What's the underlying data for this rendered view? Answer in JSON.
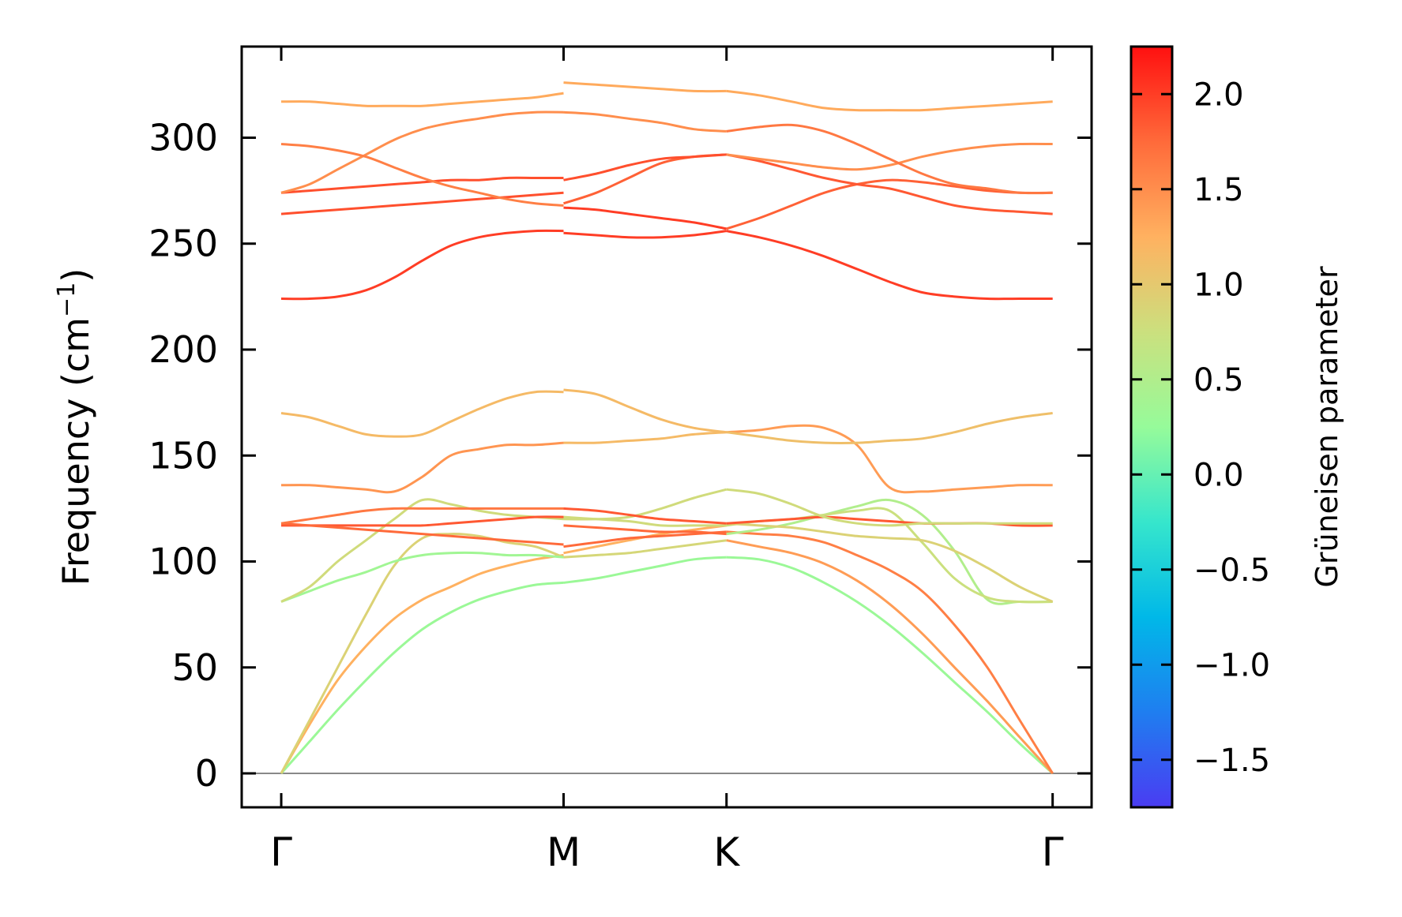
{
  "chart_data": {
    "type": "line",
    "title": "",
    "xlabel": "",
    "ylabel": "Frequency (cm",
    "ylabel_sup": "−1",
    "ylabel_close": ")",
    "ylim": [
      -16,
      343
    ],
    "yticks": [
      0,
      50,
      100,
      150,
      200,
      250,
      300
    ],
    "xticks": [
      {
        "label": "Γ",
        "pos": 0.0
      },
      {
        "label": "M",
        "pos": 1.0
      },
      {
        "label": "K",
        "pos": 1.577
      },
      {
        "label": "Γ",
        "pos": 2.732
      }
    ],
    "xlim": [
      -0.14,
      2.87
    ],
    "zero_line": true,
    "colorbar": {
      "label": "Grüneisen parameter",
      "range": [
        -1.75,
        2.25
      ],
      "ticks": [
        2.0,
        1.5,
        1.0,
        0.5,
        0.0,
        -0.5,
        -1.0,
        -1.5
      ],
      "tick_labels": [
        "2.0",
        "1.5",
        "1.0",
        "0.5",
        "0.0",
        "−0.5",
        "−1.0",
        "−1.5"
      ],
      "colormap": "rainbow"
    },
    "segments": [
      {
        "name": "Γ-M",
        "x": [
          0.0,
          0.1,
          0.2,
          0.3,
          0.4,
          0.5,
          0.6,
          0.7,
          0.8,
          0.9,
          1.0
        ],
        "bands": [
          {
            "y": [
              0,
              23,
              44,
              60,
              73,
              82,
              88,
              94,
              98,
              101,
              103
            ],
            "g": 1.25
          },
          {
            "y": [
              0,
              15,
              30,
              44,
              57,
              68,
              76,
              82,
              86,
              89,
              90
            ],
            "g": 0.3
          },
          {
            "y": [
              0,
              25,
              50,
              75,
              98,
              111,
              113,
              112,
              109,
              107,
              102
            ],
            "g": 0.9
          },
          {
            "y": [
              81,
              86,
              91,
              95,
              100,
              103,
              104,
              104,
              103,
              103,
              102
            ],
            "g": 0.35
          },
          {
            "y": [
              81,
              88,
              100,
              110,
              120,
              129,
              127,
              124,
              122,
              121,
              120
            ],
            "g": 0.8
          },
          {
            "y": [
              117,
              117,
              117,
              117,
              117,
              117,
              118,
              119,
              120,
              121,
              121
            ],
            "g": 1.85
          },
          {
            "y": [
              118,
              117,
              116,
              115,
              114,
              113,
              112,
              111,
              110,
              109,
              108
            ],
            "g": 1.75
          },
          {
            "y": [
              118,
              120,
              122,
              124,
              125,
              125,
              125,
              125,
              125,
              125,
              125
            ],
            "g": 1.65
          },
          {
            "y": [
              136,
              136,
              135,
              134,
              133,
              140,
              150,
              153,
              155,
              155,
              156
            ],
            "g": 1.45
          },
          {
            "y": [
              170,
              168,
              164,
              160,
              159,
              160,
              166,
              172,
              177,
              180,
              180
            ],
            "g": 1.15
          },
          {
            "y": [
              224,
              224,
              225,
              228,
              234,
              242,
              249,
              253,
              255,
              256,
              256
            ],
            "g": 2.0
          },
          {
            "y": [
              264,
              265,
              266,
              267,
              268,
              269,
              270,
              271,
              272,
              273,
              274
            ],
            "g": 1.9
          },
          {
            "y": [
              274,
              275,
              276,
              277,
              278,
              279,
              280,
              280,
              281,
              281,
              281
            ],
            "g": 1.9
          },
          {
            "y": [
              274,
              278,
              285,
              292,
              299,
              304,
              307,
              309,
              311,
              312,
              312
            ],
            "g": 1.5
          },
          {
            "y": [
              297,
              296,
              294,
              291,
              286,
              281,
              277,
              274,
              271,
              269,
              268
            ],
            "g": 1.6
          },
          {
            "y": [
              317,
              317,
              316,
              315,
              315,
              315,
              316,
              317,
              318,
              319,
              321
            ],
            "g": 1.3
          }
        ]
      },
      {
        "name": "M-K",
        "x": [
          1.0,
          1.1154,
          1.2308,
          1.3462,
          1.4616,
          1.577
        ],
        "bands": [
          {
            "y": [
              90,
              92,
              95,
              98,
              101,
              102
            ],
            "g": 0.3
          },
          {
            "y": [
              102,
              103,
              104,
              106,
              108,
              110
            ],
            "g": 0.85
          },
          {
            "y": [
              104,
              107,
              110,
              113,
              115,
              117
            ],
            "g": 1.25
          },
          {
            "y": [
              107,
              109,
              111,
              112,
              113,
              114
            ],
            "g": 1.75
          },
          {
            "y": [
              117,
              116,
              115,
              114,
              114,
              113
            ],
            "g": 1.75
          },
          {
            "y": [
              120,
              120,
              121,
              125,
              130,
              134
            ],
            "g": 0.8
          },
          {
            "y": [
              121,
              120,
              119,
              117,
              117,
              117
            ],
            "g": 0.8
          },
          {
            "y": [
              125,
              124,
              122,
              120,
              119,
              118
            ],
            "g": 1.85
          },
          {
            "y": [
              156,
              156,
              157,
              158,
              160,
              161
            ],
            "g": 1.15
          },
          {
            "y": [
              181,
              179,
              173,
              167,
              163,
              161
            ],
            "g": 1.15
          },
          {
            "y": [
              255,
              254,
              253,
              253,
              254,
              256
            ],
            "g": 2.0
          },
          {
            "y": [
              267,
              266,
              264,
              262,
              260,
              257
            ],
            "g": 2.0
          },
          {
            "y": [
              269,
              274,
              281,
              288,
              291,
              292
            ],
            "g": 1.8
          },
          {
            "y": [
              280,
              283,
              287,
              290,
              291,
              292
            ],
            "g": 1.9
          },
          {
            "y": [
              312,
              311,
              309,
              307,
              304,
              303
            ],
            "g": 1.5
          },
          {
            "y": [
              326,
              325,
              324,
              323,
              322,
              322
            ],
            "g": 1.3
          }
        ]
      },
      {
        "name": "K-Γ",
        "x": [
          1.577,
          1.692,
          1.808,
          1.923,
          2.039,
          2.154,
          2.27,
          2.385,
          2.501,
          2.616,
          2.732
        ],
        "bands": [
          {
            "y": [
              102,
              101,
              97,
              90,
              81,
              70,
              57,
              43,
              29,
              14,
              0
            ],
            "g": 0.3
          },
          {
            "y": [
              110,
              107,
              104,
              99,
              91,
              80,
              66,
              50,
              34,
              17,
              0
            ],
            "g": 1.4
          },
          {
            "y": [
              114,
              113,
              112,
              109,
              103,
              96,
              86,
              70,
              50,
              25,
              0
            ],
            "g": 1.6
          },
          {
            "y": [
              113,
              115,
              118,
              122,
              126,
              129,
              122,
              105,
              82,
              81,
              81
            ],
            "g": 0.5
          },
          {
            "y": [
              117,
              119,
              120,
              122,
              124,
              124,
              109,
              92,
              83,
              81,
              81
            ],
            "g": 0.75
          },
          {
            "y": [
              118,
              117,
              116,
              114,
              112,
              111,
              110,
              105,
              97,
              88,
              81
            ],
            "g": 0.9
          },
          {
            "y": [
              118,
              119,
              120,
              121,
              120,
              119,
              118,
              118,
              118,
              117,
              117
            ],
            "g": 1.85
          },
          {
            "y": [
              134,
              132,
              127,
              121,
              118,
              117,
              118,
              118,
              118,
              118,
              118
            ],
            "g": 0.8
          },
          {
            "y": [
              161,
              162,
              164,
              163,
              155,
              135,
              133,
              134,
              135,
              136,
              136
            ],
            "g": 1.4
          },
          {
            "y": [
              161,
              159,
              157,
              156,
              156,
              157,
              158,
              161,
              165,
              168,
              170
            ],
            "g": 1.1
          },
          {
            "y": [
              257,
              262,
              268,
              274,
              278,
              280,
              279,
              277,
              275,
              274,
              274
            ],
            "g": 1.8
          },
          {
            "y": [
              256,
              253,
              249,
              244,
              238,
              232,
              227,
              225,
              224,
              224,
              224
            ],
            "g": 2.0
          },
          {
            "y": [
              292,
              289,
              285,
              281,
              278,
              276,
              272,
              268,
              266,
              265,
              264
            ],
            "g": 1.85
          },
          {
            "y": [
              292,
              290,
              288,
              286,
              285,
              287,
              291,
              294,
              296,
              297,
              297
            ],
            "g": 1.5
          },
          {
            "y": [
              303,
              305,
              306,
              303,
              297,
              290,
              283,
              278,
              276,
              274,
              274
            ],
            "g": 1.65
          },
          {
            "y": [
              322,
              320,
              317,
              314,
              313,
              313,
              313,
              314,
              315,
              316,
              317
            ],
            "g": 1.3
          }
        ]
      }
    ]
  }
}
